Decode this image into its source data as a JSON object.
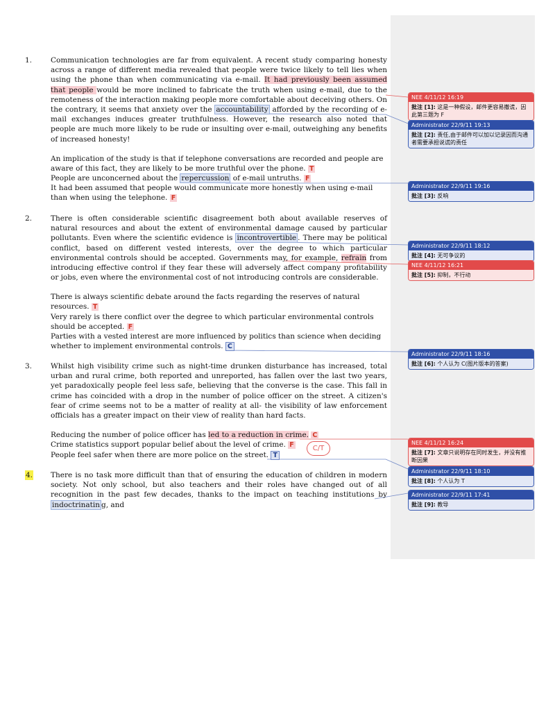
{
  "questions": [
    {
      "number": "1.",
      "passage": {
        "p1": "Communication technologies are far from equivalent. A recent study comparing honesty across a range of different media revealed that people were twice likely to tell lies when using the phone than when communicating via e-mail. ",
        "h1": "It had previously been assumed that people ",
        "p2": "would be more inclined to fabricate the truth when using e-mail, due to the remoteness of the interaction making people more comfortable about deceiving others. On the contrary, it seems that anxiety over the ",
        "h2": "accountability",
        "p3": " afforded by the recording of e-mail exchanges induces greater truthfulness. However, the research also noted that people are much more likely to be rude or insulting over e-mail, outweighing any benefits of increased honesty!"
      },
      "statements": [
        {
          "text": " An implication of the study is that if telephone conversations are recorded and people are aware of this fact, they are likely to be more truthful over the phone.  ",
          "answer": "T"
        },
        {
          "a": " People are unconcerned about the ",
          "h": "repercussion",
          "b": " of e-mail untruths. ",
          "answer": "F"
        },
        {
          "text": "It had been assumed that people would communicate more honestly when using e-mail than when using the telephone. ",
          "answer": "F"
        }
      ]
    },
    {
      "number": "2.",
      "passage": {
        "p1": "There is often considerable scientific disagreement both about available reserves of natural resources and about the extent of environmental damage caused by particular pollutants. Even where the scientific evidence is ",
        "h1": "incontrovertible",
        "p2": ". There may be political conflict, based on different vested interests, over the degree to which particular environmental controls should be accepted. Governments may, for example, ",
        "h2": "refrain",
        "p3": " from introducing effective control if they fear these will adversely affect company profitability or jobs, even where the environmental cost of not introducing controls are considerable."
      },
      "statements": [
        {
          "text": "There is always scientific debate around the facts regarding the reserves of natural resources. ",
          "answer": "T"
        },
        {
          "text": "Very rarely is there conflict over the degree to which particular environmental controls should be accepted. ",
          "answer": "F"
        },
        {
          "text": "Parties with a vested interest are more influenced by politics than science when deciding whether to implement environmental controls. ",
          "answer": "C"
        }
      ]
    },
    {
      "number": "3.",
      "passage": {
        "p1": "Whilst high visibility crime such as night-time drunken disturbance has increased, total urban and rural crime, both reported and unreported, has fallen over the last two years, yet paradoxically people feel less safe, believing that the converse is the case. This fall in crime has coincided with a drop in the number of police officer on the street. A citizen's fear of crime seems not to be a matter of reality at all- the visibility of law enforcement officials has a greater impact on their view of reality than hard facts."
      },
      "statements": [
        {
          "a": "Reducing the number of police officer has ",
          "h": "led to a reduction in crime.",
          "b": " ",
          "answer": "C"
        },
        {
          "text": "Crime statistics support popular belief about the level of crime. ",
          "answer": "F"
        },
        {
          "text": "People feel safer when there are more police on the street. ",
          "answer": "T"
        }
      ],
      "bubble": "C/T"
    },
    {
      "number": "4.",
      "passage": {
        "p1": "There is no task more difficult than that of ensuring the education of children in modern society. Not only school, but also teachers and their roles have changed out of all recognition in the past few decades, thanks to the impact on teaching institutions by ",
        "h1": "indoctrinatin",
        "p2": "g, and"
      }
    }
  ],
  "comments": [
    {
      "header": "NEE 4/11/12 16:19",
      "label": "批注 [1]:",
      "text": " 这是一种假设，邮件更容易撒谎，因此第三题为 F",
      "color": "red"
    },
    {
      "header": "Administrator 22/9/11 19:13",
      "label": "批注 [2]:",
      "text": " 责任,由于邮件可以加以记录因而沟通者需要承担说谎的责任",
      "color": "blue"
    },
    {
      "header": "Administrator 22/9/11 19:16",
      "label": "批注 [3]:",
      "text": " 反响",
      "color": "blue"
    },
    {
      "header": "Administrator 22/9/11 18:12",
      "label": "批注 [4]:",
      "text": " 无可争议的",
      "color": "blue"
    },
    {
      "header": "NEE 4/11/12 16:21",
      "label": "批注 [5]:",
      "text": " 抑制，不行动",
      "color": "red"
    },
    {
      "header": "Administrator 22/9/11 18:16",
      "label": "批注 [6]:",
      "text": " 个人认为 C(图片版本的答案)",
      "color": "blue"
    },
    {
      "header": "NEE 4/11/12 16:24",
      "label": "批注 [7]:",
      "text": " 文章只说明存在同时发生，并没有推断因果",
      "color": "red"
    },
    {
      "header": "Administrator 22/9/11 18:10",
      "label": "批注 [8]:",
      "text": " 个人认为 T",
      "color": "blue"
    },
    {
      "header": "Administrator 22/9/11 17:41",
      "label": "批注 [9]:",
      "text": " 教导",
      "color": "blue"
    }
  ]
}
